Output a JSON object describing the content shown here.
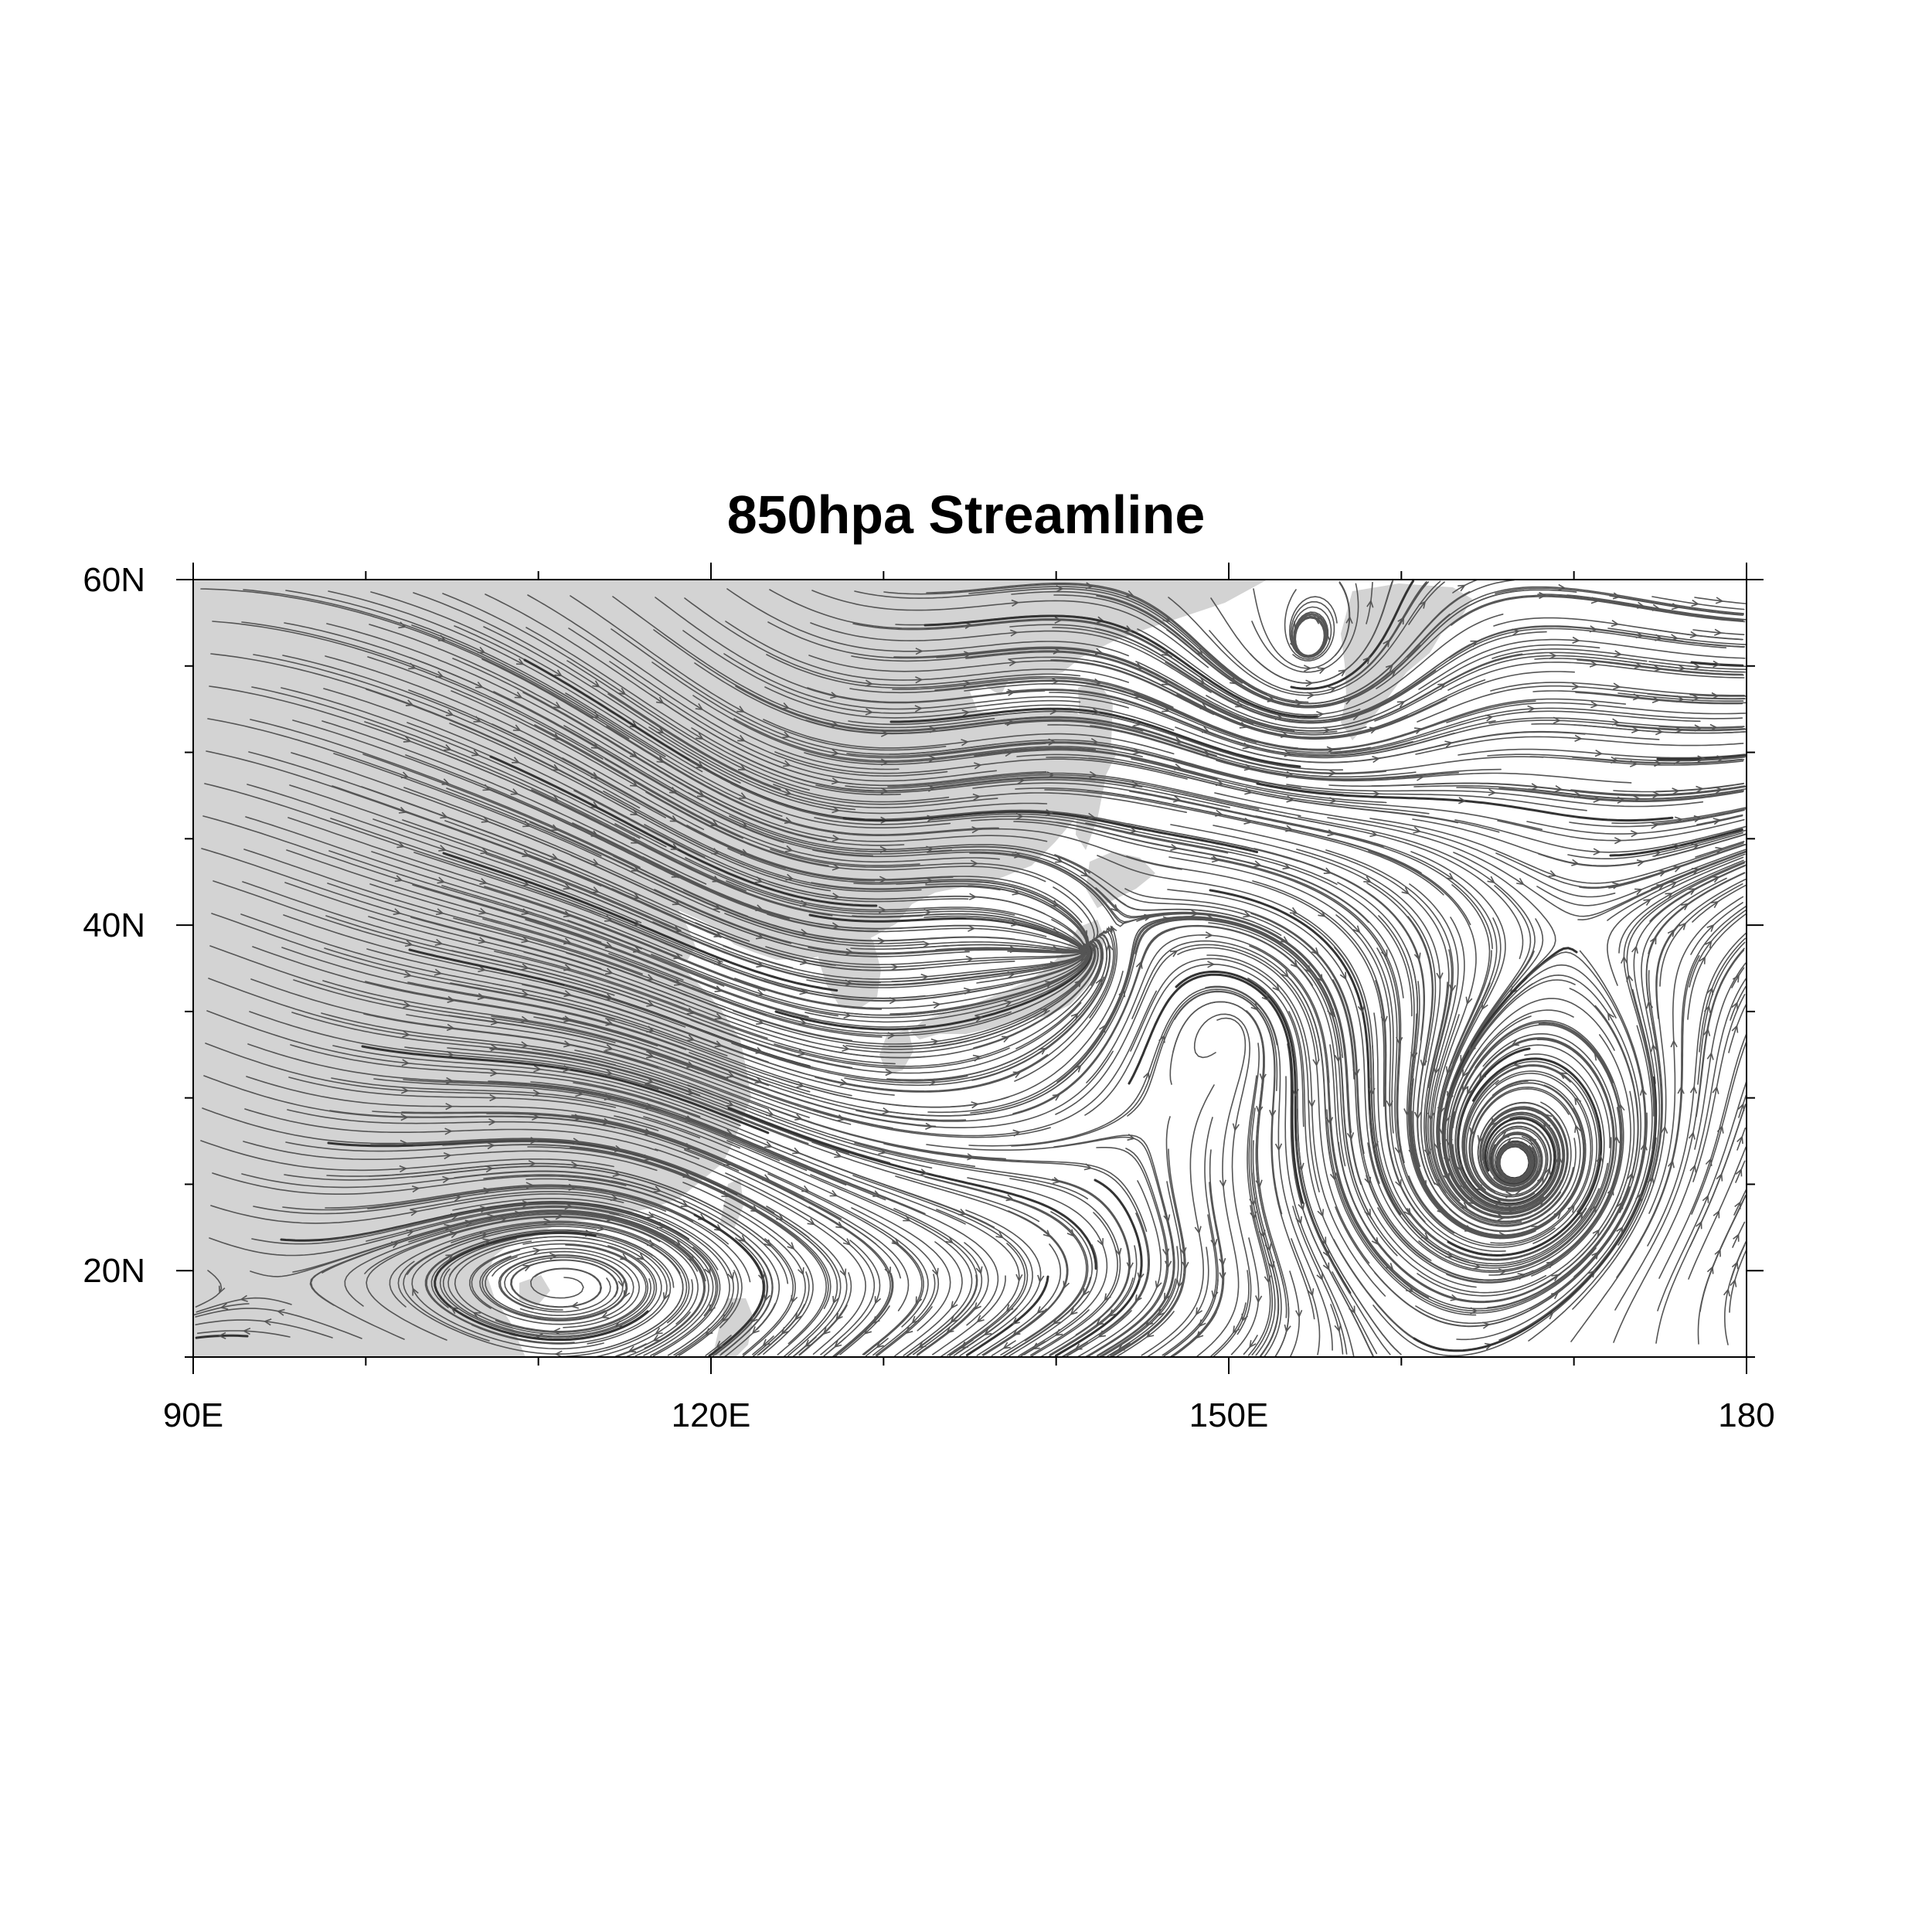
{
  "title": "850hpa Streamline",
  "map": {
    "projection": "cylindrical equidistant",
    "lon_range": [
      90,
      180
    ],
    "lat_range": [
      15,
      60
    ],
    "land_color": "#d3d3d3",
    "ocean_color": "#ffffff",
    "streamline_color": "#555555"
  },
  "axes": {
    "x_ticks": [
      {
        "value": 90,
        "label": "90E"
      },
      {
        "value": 120,
        "label": "120E"
      },
      {
        "value": 150,
        "label": "150E"
      },
      {
        "value": 180,
        "label": "180"
      }
    ],
    "y_ticks": [
      {
        "value": 60,
        "label": "60N"
      },
      {
        "value": 40,
        "label": "40N"
      },
      {
        "value": 20,
        "label": "20N"
      }
    ],
    "x_minor_step": 10,
    "y_minor_step": 5
  },
  "features": [
    {
      "name": "cyclonic-vortex-central-pacific",
      "lon": 166.5,
      "lat": 26
    },
    {
      "name": "cyclonic-vortex-okhotsk-kamchatka",
      "lon": 154.5,
      "lat": 56
    },
    {
      "name": "convergence-point-off-japan",
      "lon": 141.5,
      "lat": 38.5
    },
    {
      "name": "anticyclonic-circulation-east-of-japan",
      "lon": 150,
      "lat": 34
    }
  ]
}
